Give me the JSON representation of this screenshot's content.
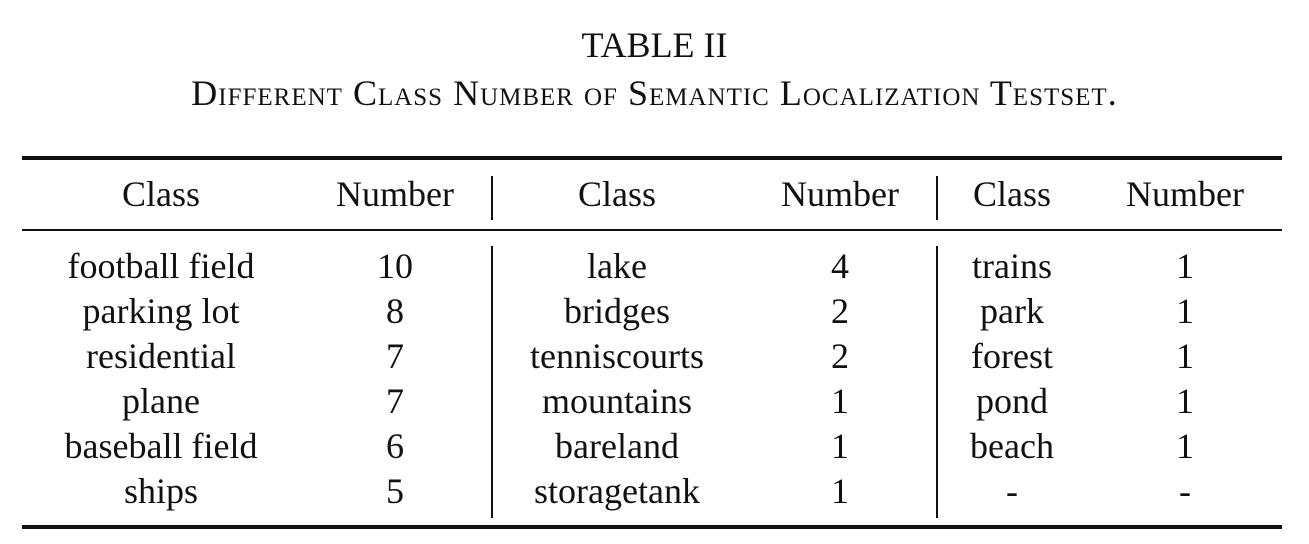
{
  "caption": {
    "label": "TABLE II",
    "title": "Different Class Number of Semantic Localization Testset."
  },
  "table": {
    "headers": [
      "Class",
      "Number",
      "Class",
      "Number",
      "Class",
      "Number"
    ],
    "rows": [
      [
        "football field",
        "10",
        "lake",
        "4",
        "trains",
        "1"
      ],
      [
        "parking lot",
        "8",
        "bridges",
        "2",
        "park",
        "1"
      ],
      [
        "residential",
        "7",
        "tenniscourts",
        "2",
        "forest",
        "1"
      ],
      [
        "plane",
        "7",
        "mountains",
        "1",
        "pond",
        "1"
      ],
      [
        "baseball field",
        "6",
        "bareland",
        "1",
        "beach",
        "1"
      ],
      [
        "ships",
        "5",
        "storagetank",
        "1",
        "-",
        "-"
      ]
    ]
  }
}
